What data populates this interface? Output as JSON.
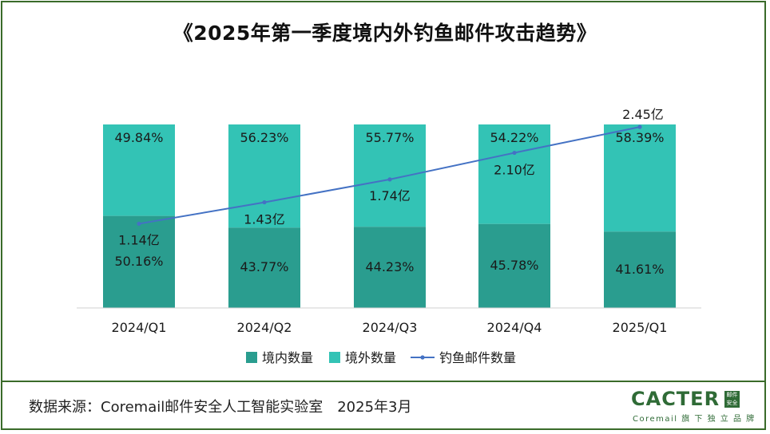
{
  "title": "《2025年第一季度境内外钓鱼邮件攻击趋势》",
  "source": "数据来源：Coremail邮件安全人工智能实验室　2025年3月",
  "logo": {
    "word": "CACTER",
    "badge_line1": "邮件",
    "badge_line2": "安全",
    "sub": "Coremail 旗 下 独 立 品 牌"
  },
  "colors": {
    "domestic": "#2a9d8f",
    "foreign": "#33c3b5",
    "line": "#4472c4",
    "frame": "#3a6b2a"
  },
  "chart_data": {
    "type": "bar",
    "stacked": true,
    "categories": [
      "2024/Q1",
      "2024/Q2",
      "2024/Q3",
      "2024/Q4",
      "2025/Q1"
    ],
    "series": [
      {
        "name": "境内数量",
        "values": [
          50.16,
          43.77,
          44.23,
          45.78,
          41.61
        ],
        "labels": [
          "50.16%",
          "43.77%",
          "44.23%",
          "45.78%",
          "41.61%"
        ]
      },
      {
        "name": "境外数量",
        "values": [
          49.84,
          56.23,
          55.77,
          54.22,
          58.39
        ],
        "labels": [
          "49.84%",
          "56.23%",
          "55.77%",
          "54.22%",
          "58.39%"
        ]
      }
    ],
    "line_series": {
      "name": "钓鱼邮件数量",
      "values": [
        1.14,
        1.43,
        1.74,
        2.1,
        2.45
      ],
      "labels": [
        "1.14亿",
        "1.43亿",
        "1.74亿",
        "2.10亿",
        "2.45亿"
      ]
    },
    "ylim": [
      0,
      100
    ],
    "legend_position": "bottom",
    "grid": false
  }
}
